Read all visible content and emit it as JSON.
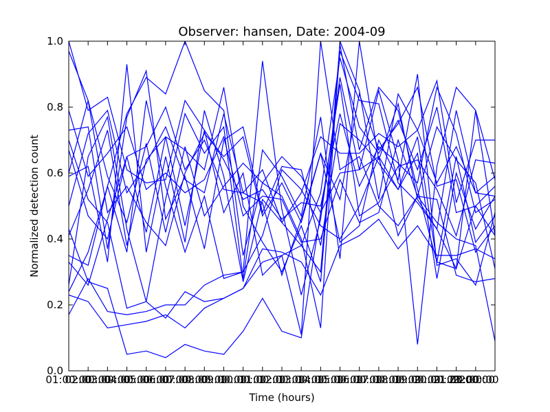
{
  "chart_data": {
    "type": "line",
    "title": "Observer: hansen, Date: 2004-09",
    "xlabel": "Time (hours)",
    "ylabel": "Normalized detection count",
    "x_tick_labels": [
      "01:00:00",
      "02:00:00",
      "03:00:00",
      "04:00:00",
      "05:00:00",
      "06:00:00",
      "07:00:00",
      "08:00:00",
      "09:00:00",
      "10:00:00",
      "11:00:00",
      "12:00:00",
      "13:00:00",
      "14:00:00",
      "15:00:00",
      "16:00:00",
      "17:00:00",
      "18:00:00",
      "19:00:00",
      "20:00:00",
      "21:00:00",
      "22:00:00",
      "23:00:00"
    ],
    "y_tick_labels": [
      "0.0",
      "0.2",
      "0.4",
      "0.6",
      "0.8",
      "1.0"
    ],
    "x_range_hours": [
      1,
      23
    ],
    "ylim": [
      0.0,
      1.0
    ],
    "grid": false,
    "legend": "none",
    "line_color": "#0000ff",
    "x": [
      "01:00:00",
      "02:00:00",
      "03:00:00",
      "04:00:00",
      "05:00:00",
      "06:00:00",
      "07:00:00",
      "08:00:00",
      "09:00:00",
      "10:00:00",
      "11:00:00",
      "12:00:00",
      "13:00:00",
      "14:00:00",
      "15:00:00",
      "16:00:00",
      "17:00:00",
      "18:00:00",
      "19:00:00",
      "20:00:00",
      "21:00:00",
      "22:00:00",
      "23:00:00"
    ],
    "series": [
      {
        "values": [
          0.24,
          0.36,
          0.56,
          0.78,
          0.89,
          0.84,
          1.0,
          0.85,
          0.79,
          0.35,
          0.57,
          0.53,
          0.4,
          0.13,
          1.0,
          0.85,
          0.52,
          0.84,
          0.73,
          0.88,
          0.51,
          0.7,
          0.7
        ]
      },
      {
        "values": [
          0.59,
          0.62,
          0.33,
          0.93,
          0.36,
          0.65,
          0.39,
          0.79,
          0.59,
          0.27,
          0.52,
          0.45,
          0.38,
          0.54,
          0.95,
          0.74,
          0.66,
          0.76,
          0.61,
          0.8,
          0.48,
          0.5,
          0.56
        ]
      },
      {
        "values": [
          0.17,
          0.28,
          0.18,
          0.17,
          0.18,
          0.2,
          0.2,
          0.26,
          0.29,
          0.3,
          0.41,
          0.61,
          0.55,
          0.44,
          0.4,
          0.5,
          0.65,
          0.55,
          0.71,
          0.33,
          0.31,
          0.5,
          0.41
        ]
      },
      {
        "values": [
          0.23,
          0.21,
          0.13,
          0.14,
          0.15,
          0.17,
          0.13,
          0.19,
          0.22,
          0.25,
          0.37,
          0.36,
          0.33,
          0.23,
          0.38,
          0.41,
          0.46,
          0.37,
          0.44,
          0.35,
          0.35,
          0.37,
          0.34
        ]
      },
      {
        "values": [
          0.7,
          0.52,
          0.45,
          0.19,
          0.21,
          0.16,
          0.24,
          0.21,
          0.22,
          0.25,
          0.33,
          0.35,
          0.11,
          1.0,
          0.61,
          0.65,
          0.5,
          0.44,
          0.53,
          0.52,
          0.29,
          0.27,
          0.28
        ]
      },
      {
        "values": [
          0.43,
          0.27,
          0.25,
          0.05,
          0.06,
          0.04,
          0.08,
          0.06,
          0.05,
          0.12,
          0.22,
          0.12,
          0.1,
          0.48,
          0.6,
          0.61,
          0.65,
          0.41,
          0.53,
          0.45,
          0.4,
          0.38,
          0.09
        ]
      },
      {
        "values": [
          0.5,
          0.72,
          0.79,
          0.54,
          0.63,
          0.74,
          0.58,
          0.54,
          0.78,
          0.54,
          0.61,
          0.45,
          0.54,
          0.71,
          0.66,
          0.66,
          0.72,
          0.68,
          0.73,
          0.57,
          0.68,
          0.54,
          0.59
        ]
      },
      {
        "values": [
          1.0,
          0.79,
          0.83,
          0.61,
          0.57,
          0.58,
          0.82,
          0.73,
          0.48,
          0.6,
          0.29,
          0.35,
          0.38,
          0.3,
          0.99,
          0.67,
          0.86,
          0.79,
          0.55,
          0.33,
          0.65,
          0.39,
          0.47
        ]
      },
      {
        "values": [
          0.33,
          0.26,
          0.46,
          0.65,
          0.68,
          0.8,
          0.61,
          0.7,
          0.55,
          0.54,
          0.51,
          0.29,
          0.46,
          0.66,
          0.52,
          0.84,
          0.67,
          0.75,
          0.86,
          0.56,
          0.58,
          0.36,
          0.44
        ]
      },
      {
        "values": [
          0.41,
          0.55,
          0.73,
          0.38,
          0.64,
          0.71,
          0.67,
          0.61,
          0.86,
          0.5,
          0.39,
          0.3,
          0.44,
          0.27,
          0.97,
          0.82,
          0.81,
          0.57,
          0.51,
          0.43,
          0.31,
          0.79,
          0.58
        ]
      },
      {
        "values": [
          0.79,
          0.59,
          0.66,
          0.74,
          0.55,
          0.6,
          0.54,
          0.58,
          0.71,
          0.47,
          0.53,
          0.52,
          0.39,
          0.4,
          0.58,
          0.45,
          0.48,
          0.7,
          0.53,
          0.74,
          0.64,
          0.57,
          0.31
        ]
      },
      {
        "values": [
          0.26,
          0.65,
          0.77,
          0.43,
          0.21,
          0.52,
          0.78,
          0.66,
          0.74,
          0.28,
          0.67,
          0.59,
          0.47,
          0.77,
          0.34,
          1.0,
          0.64,
          0.81,
          0.52,
          0.43,
          0.79,
          0.54,
          0.53
        ]
      },
      {
        "values": [
          0.35,
          0.32,
          0.56,
          0.36,
          0.82,
          0.56,
          0.36,
          0.53,
          0.28,
          0.3,
          0.94,
          0.49,
          0.23,
          0.46,
          0.89,
          0.61,
          0.85,
          0.64,
          0.08,
          0.62,
          0.86,
          0.79,
          0.41
        ]
      },
      {
        "values": [
          0.67,
          0.47,
          0.4,
          0.65,
          0.42,
          0.71,
          0.44,
          0.73,
          0.64,
          0.52,
          0.55,
          0.46,
          0.51,
          0.5,
          0.78,
          0.56,
          0.68,
          0.63,
          0.57,
          0.86,
          0.72,
          0.48,
          0.52
        ]
      },
      {
        "values": [
          0.97,
          0.82,
          0.59,
          0.45,
          0.69,
          0.42,
          0.68,
          0.47,
          0.56,
          0.63,
          0.57,
          0.65,
          0.59,
          0.48,
          0.87,
          0.47,
          0.51,
          0.62,
          0.64,
          0.55,
          0.41,
          0.64,
          0.63
        ]
      },
      {
        "values": [
          0.6,
          0.82,
          0.48,
          0.56,
          0.45,
          0.38,
          0.6,
          0.72,
          0.65,
          0.71,
          0.47,
          0.57,
          0.45,
          0.66,
          0.39,
          0.44,
          0.7,
          0.58,
          0.9,
          0.32,
          0.34,
          0.26,
          0.48
        ]
      },
      {
        "values": [
          0.73,
          0.74,
          0.37,
          0.77,
          0.91,
          0.46,
          0.59,
          0.37,
          0.7,
          0.74,
          0.48,
          0.62,
          0.61,
          0.38,
          0.75,
          0.7,
          0.63,
          0.55,
          0.66,
          0.28,
          0.6,
          0.43,
          0.53
        ]
      }
    ]
  }
}
